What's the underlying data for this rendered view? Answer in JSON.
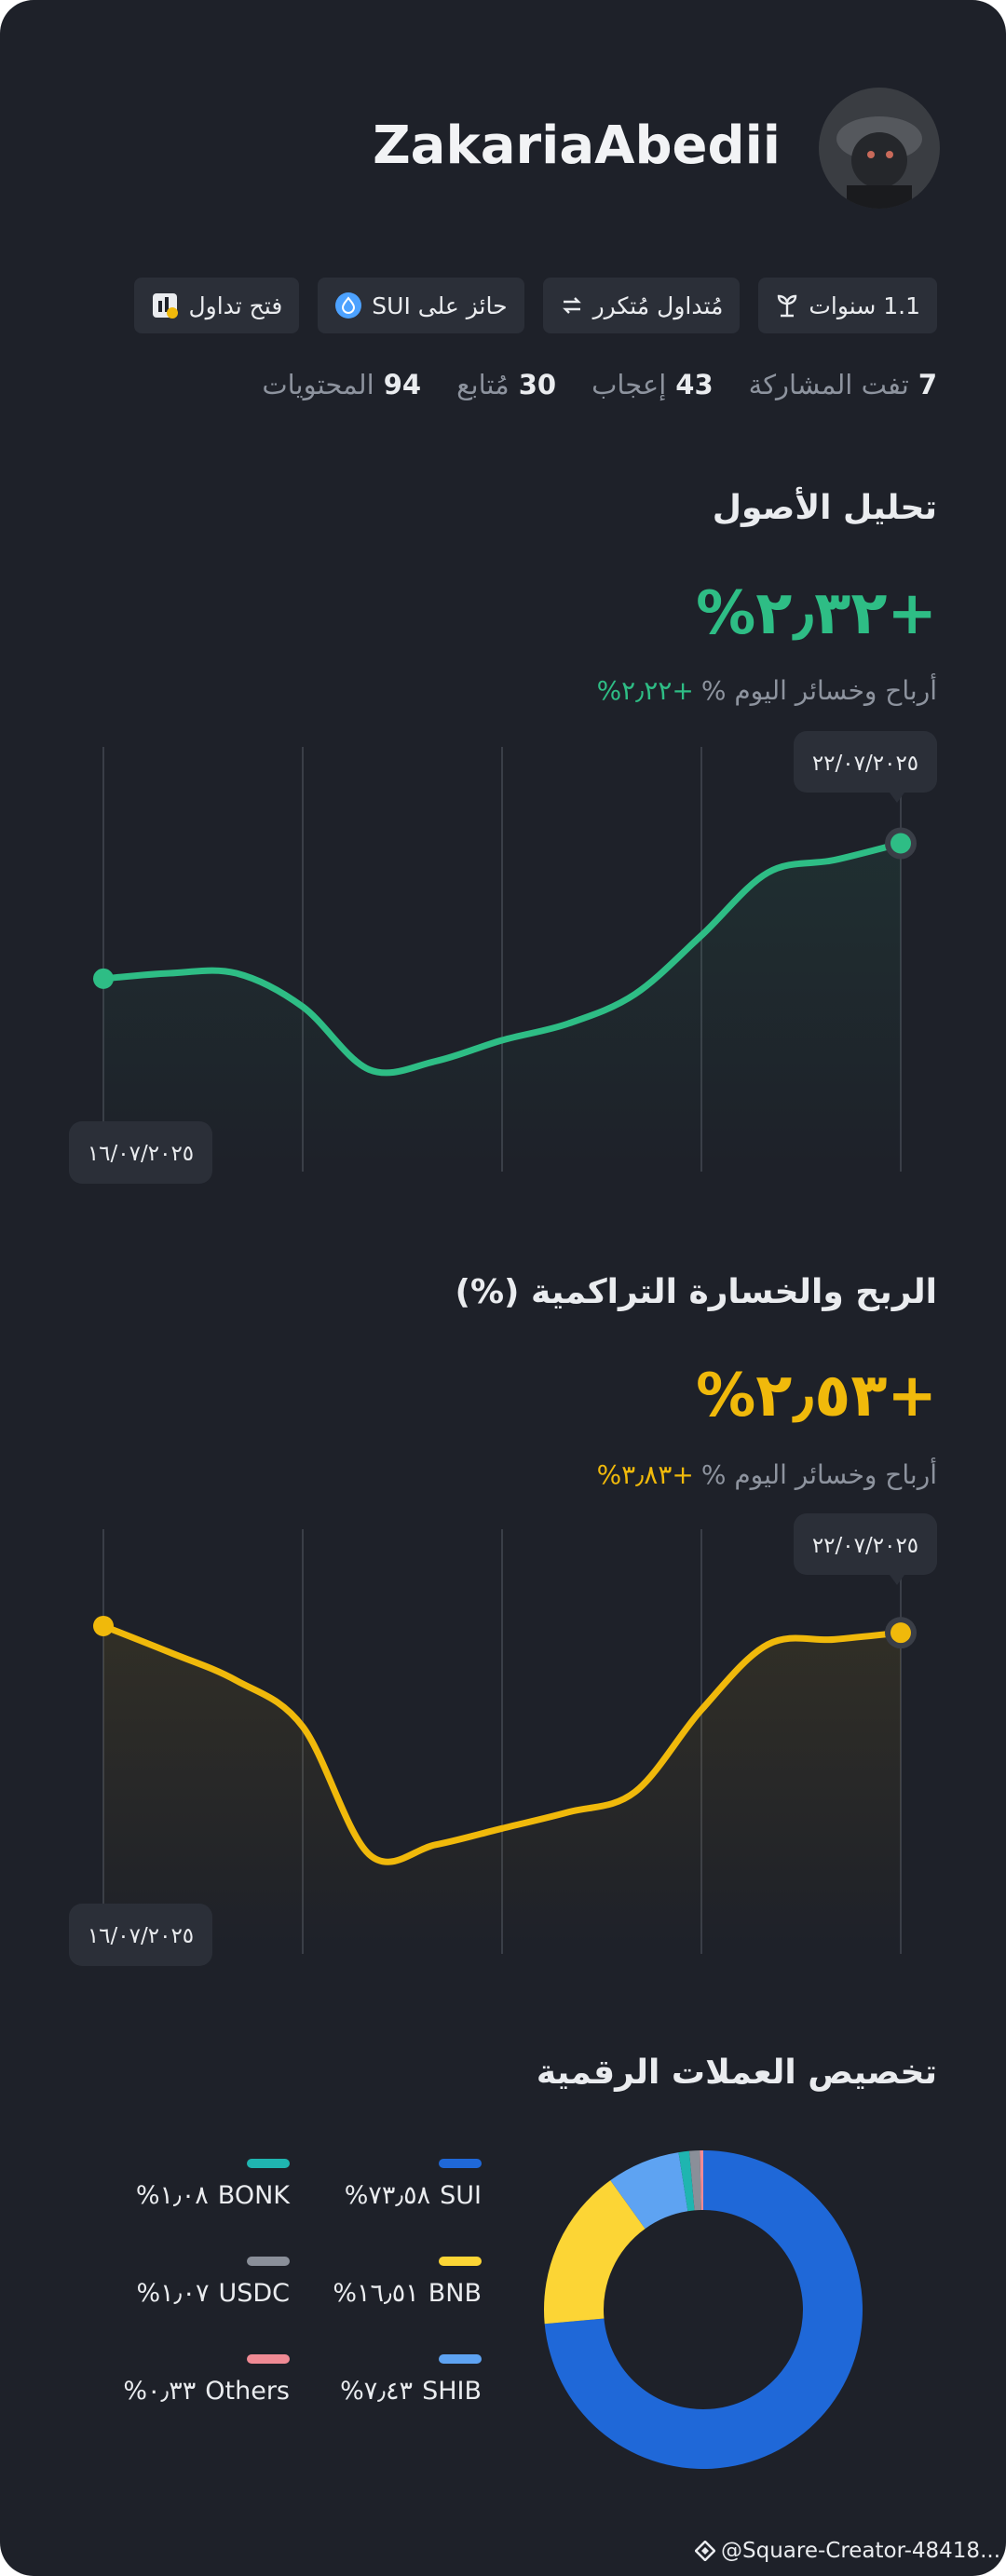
{
  "profile": {
    "name": "ZakariaAbedii",
    "badges": [
      "1.1 سنوات",
      "مُتداول مُتكرر",
      "حائز على SUI",
      "فتح تداول"
    ],
    "stats": [
      {
        "value": 7,
        "label": "تفت المشاركة"
      },
      {
        "value": 43,
        "label": "إعجاب"
      },
      {
        "value": 30,
        "label": "مُتابع"
      },
      {
        "value": 94,
        "label": "المحتويات"
      }
    ]
  },
  "chart_data": [
    {
      "type": "line",
      "title": "تحليل الأصول",
      "headline": "%٢٫٣٢+",
      "subtitle": "أرباح وخسائر اليوم %",
      "change": "%٢٫٢٢+",
      "start_date": "١٦/٠٧/٢٠٢٥",
      "end_date": "٢٢/٠٧/٢٠٢٥",
      "color": "#2ebd85",
      "ylim": [
        0,
        100
      ],
      "values": [
        44.7,
        46,
        46,
        38,
        23,
        25,
        30,
        34,
        41,
        55,
        70,
        73,
        77
      ]
    },
    {
      "type": "line",
      "title": "الربح والخسارة التراكمية (%)",
      "headline": "%٢٫٥٣+",
      "subtitle": "أرباح وخسائر اليوم %",
      "change": "%٣٫٨٣+",
      "start_date": "١٦/٠٧/٢٠٢٥",
      "end_date": "٢٢/٠٧/٢٠٢٥",
      "color": "#f0b90b",
      "ylim": [
        0,
        100
      ],
      "values": [
        76.9,
        70.6,
        63.9,
        52.9,
        22.4,
        24.7,
        28.6,
        32.5,
        37.3,
        56.9,
        72.5,
        73.7,
        75.3
      ]
    },
    {
      "type": "pie",
      "title": "تخصيص العملات الرقمية",
      "categories": [
        "SUI",
        "BNB",
        "SHIB",
        "BONK",
        "USDC",
        "Others"
      ],
      "values": [
        73.58,
        16.51,
        7.43,
        1.08,
        1.07,
        0.33
      ],
      "value_labels": [
        "%٧٣٫٥٨",
        "%١٦٫٥١",
        "%٧٫٤٣",
        "%١٫٠٨",
        "%١٫٠٧",
        "%٠٫٣٣"
      ],
      "colors": [
        "#1f68d8",
        "#fcd535",
        "#5ea3f2",
        "#1fb5b0",
        "#8a8f99",
        "#f08a94"
      ]
    }
  ],
  "footer": "@Square-Creator-48418..."
}
